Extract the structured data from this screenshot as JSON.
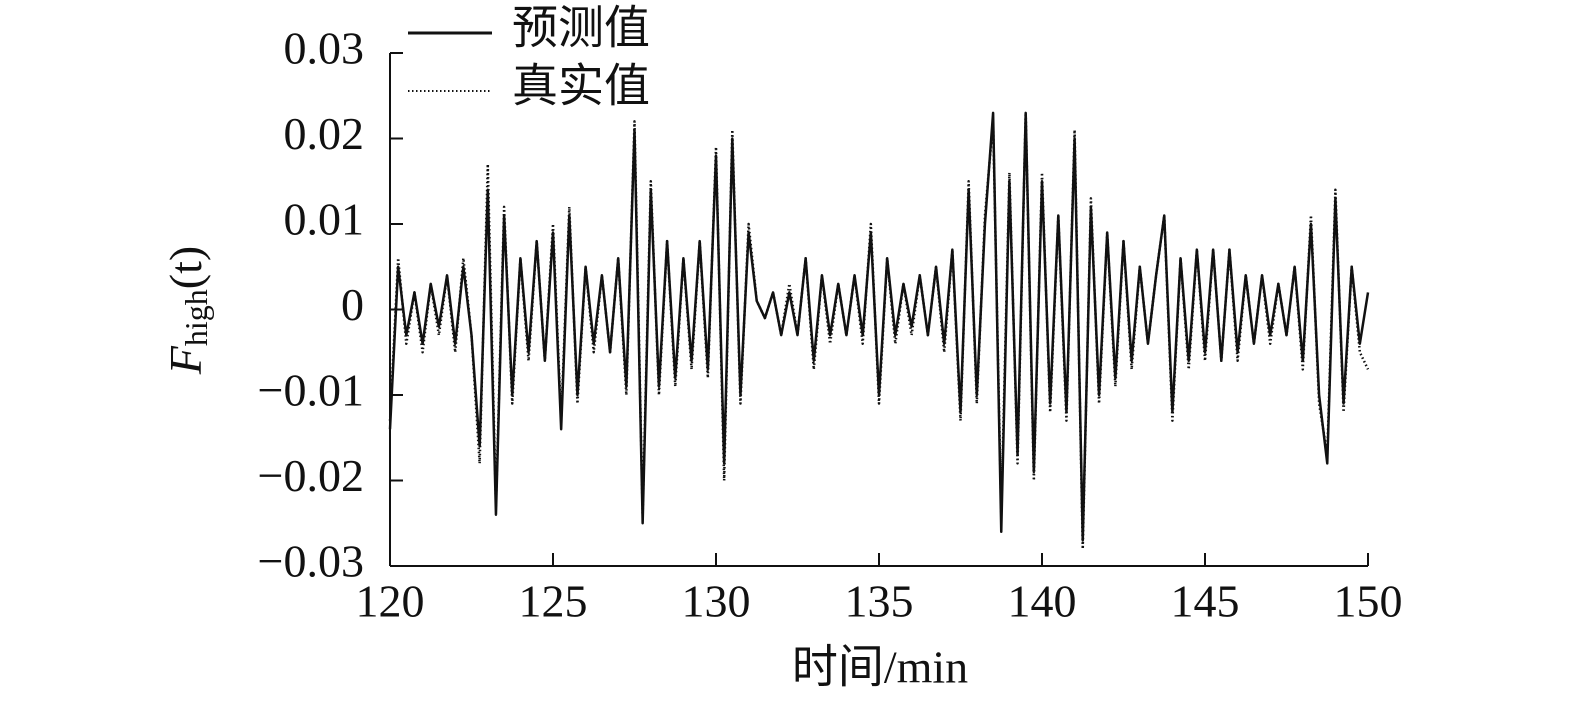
{
  "chart_data": {
    "type": "line",
    "ylabel_parts": [
      "F",
      "high",
      "(t)"
    ],
    "xlabel": "时间/min",
    "x": [
      120,
      120.25,
      120.5,
      120.75,
      121,
      121.25,
      121.5,
      121.75,
      122,
      122.25,
      122.5,
      122.75,
      123,
      123.25,
      123.5,
      123.75,
      124,
      124.25,
      124.5,
      124.75,
      125,
      125.25,
      125.5,
      125.75,
      126,
      126.25,
      126.5,
      126.75,
      127,
      127.25,
      127.5,
      127.75,
      128,
      128.25,
      128.5,
      128.75,
      129,
      129.25,
      129.5,
      129.75,
      130,
      130.25,
      130.5,
      130.75,
      131,
      131.25,
      131.5,
      131.75,
      132,
      132.25,
      132.5,
      132.75,
      133,
      133.25,
      133.5,
      133.75,
      134,
      134.25,
      134.5,
      134.75,
      135,
      135.25,
      135.5,
      135.75,
      136,
      136.25,
      136.5,
      136.75,
      137,
      137.25,
      137.5,
      137.75,
      138,
      138.25,
      138.5,
      138.75,
      139,
      139.25,
      139.5,
      139.75,
      140,
      140.25,
      140.5,
      140.75,
      141,
      141.25,
      141.5,
      141.75,
      142,
      142.25,
      142.5,
      142.75,
      143,
      143.25,
      143.5,
      143.75,
      144,
      144.25,
      144.5,
      144.75,
      145,
      145.25,
      145.5,
      145.75,
      146,
      146.25,
      146.5,
      146.75,
      147,
      147.25,
      147.5,
      147.75,
      148,
      148.25,
      148.5,
      148.75,
      149,
      149.25,
      149.5,
      149.75,
      150
    ],
    "series": [
      {
        "name": "预测值",
        "color": "#111111",
        "style": "solid",
        "values": [
          -0.014,
          0.005,
          -0.003,
          0.002,
          -0.004,
          0.003,
          -0.002,
          0.004,
          -0.004,
          0.005,
          -0.003,
          -0.016,
          0.014,
          -0.024,
          0.011,
          -0.01,
          0.006,
          -0.005,
          0.008,
          -0.006,
          0.009,
          -0.014,
          0.011,
          -0.01,
          0.005,
          -0.004,
          0.004,
          -0.005,
          0.006,
          -0.009,
          0.021,
          -0.025,
          0.014,
          -0.009,
          0.008,
          -0.008,
          0.006,
          -0.006,
          0.008,
          -0.007,
          0.018,
          -0.018,
          0.02,
          -0.01,
          0.009,
          0.001,
          -0.001,
          0.002,
          -0.003,
          0.002,
          -0.003,
          0.006,
          -0.006,
          0.004,
          -0.003,
          0.003,
          -0.003,
          0.004,
          -0.003,
          0.009,
          -0.01,
          0.006,
          -0.003,
          0.003,
          -0.002,
          0.004,
          -0.003,
          0.005,
          -0.004,
          0.007,
          -0.012,
          0.014,
          -0.01,
          0.01,
          0.023,
          -0.026,
          0.015,
          -0.017,
          0.023,
          -0.019,
          0.015,
          -0.011,
          0.011,
          -0.012,
          0.02,
          -0.027,
          0.012,
          -0.01,
          0.009,
          -0.008,
          0.008,
          -0.006,
          0.005,
          -0.004,
          0.004,
          0.011,
          -0.012,
          0.006,
          -0.006,
          0.007,
          -0.005,
          0.007,
          -0.006,
          0.007,
          -0.005,
          0.004,
          -0.004,
          0.004,
          -0.003,
          0.003,
          -0.003,
          0.005,
          -0.006,
          0.01,
          -0.01,
          -0.018,
          0.013,
          -0.011,
          0.005,
          -0.004,
          0.002
        ]
      },
      {
        "name": "真实值",
        "color": "#111111",
        "style": "dotted",
        "values": [
          -0.013,
          0.006,
          -0.004,
          0.002,
          -0.005,
          0.003,
          -0.003,
          0.004,
          -0.005,
          0.006,
          -0.003,
          -0.018,
          0.017,
          -0.023,
          0.012,
          -0.011,
          0.006,
          -0.006,
          0.008,
          -0.006,
          0.01,
          -0.013,
          0.012,
          -0.011,
          0.005,
          -0.005,
          0.004,
          -0.005,
          0.006,
          -0.01,
          0.022,
          -0.024,
          0.015,
          -0.01,
          0.008,
          -0.009,
          0.006,
          -0.007,
          0.008,
          -0.008,
          0.019,
          -0.02,
          0.021,
          -0.011,
          0.01,
          0.001,
          -0.001,
          0.002,
          -0.003,
          0.003,
          -0.003,
          0.006,
          -0.007,
          0.004,
          -0.004,
          0.003,
          -0.003,
          0.004,
          -0.004,
          0.01,
          -0.011,
          0.006,
          -0.004,
          0.003,
          -0.003,
          0.004,
          -0.003,
          0.005,
          -0.005,
          0.007,
          -0.013,
          0.015,
          -0.011,
          0.011,
          0.022,
          -0.024,
          0.016,
          -0.018,
          0.023,
          -0.02,
          0.016,
          -0.012,
          0.011,
          -0.013,
          0.021,
          -0.028,
          0.013,
          -0.011,
          0.009,
          -0.009,
          0.008,
          -0.007,
          0.005,
          -0.004,
          0.004,
          0.011,
          -0.013,
          0.006,
          -0.007,
          0.007,
          -0.006,
          0.007,
          -0.006,
          0.007,
          -0.006,
          0.004,
          -0.004,
          0.004,
          -0.004,
          0.003,
          -0.003,
          0.005,
          -0.007,
          0.011,
          -0.011,
          -0.017,
          0.014,
          -0.012,
          0.005,
          -0.005,
          -0.007
        ]
      }
    ],
    "xlim": [
      120,
      150
    ],
    "xticks": [
      120,
      125,
      130,
      135,
      140,
      145,
      150
    ],
    "ylim": [
      -0.03,
      0.03
    ],
    "yticks": [
      {
        "value": -0.03,
        "label": "−0.03"
      },
      {
        "value": -0.02,
        "label": "−0.02"
      },
      {
        "value": -0.01,
        "label": "−0.01"
      },
      0,
      0.01,
      0.02,
      0.03
    ],
    "grid": false,
    "legend": "top-left"
  }
}
